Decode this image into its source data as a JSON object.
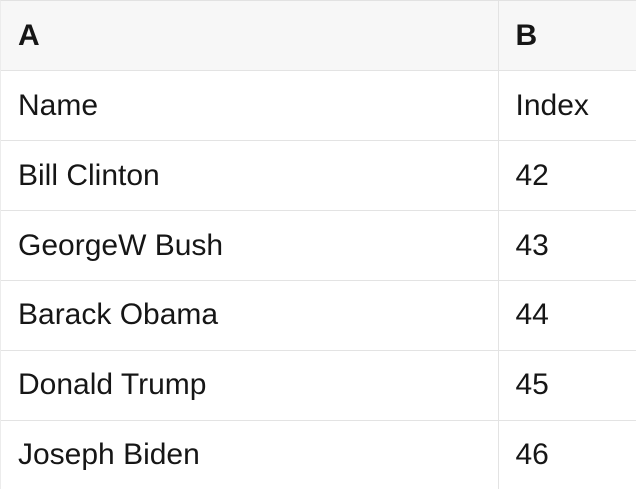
{
  "table": {
    "columns": [
      "A",
      "B"
    ],
    "rows": [
      [
        "Name",
        "Index"
      ],
      [
        "Bill Clinton",
        "42"
      ],
      [
        "GeorgeW Bush",
        "43"
      ],
      [
        "Barack Obama",
        "44"
      ],
      [
        "Donald Trump",
        "45"
      ],
      [
        "Joseph Biden",
        "46"
      ]
    ]
  },
  "colors": {
    "header_bg": "#f7f7f7",
    "border": "#e3e3e3",
    "text": "#161616",
    "row_bg": "#ffffff"
  }
}
